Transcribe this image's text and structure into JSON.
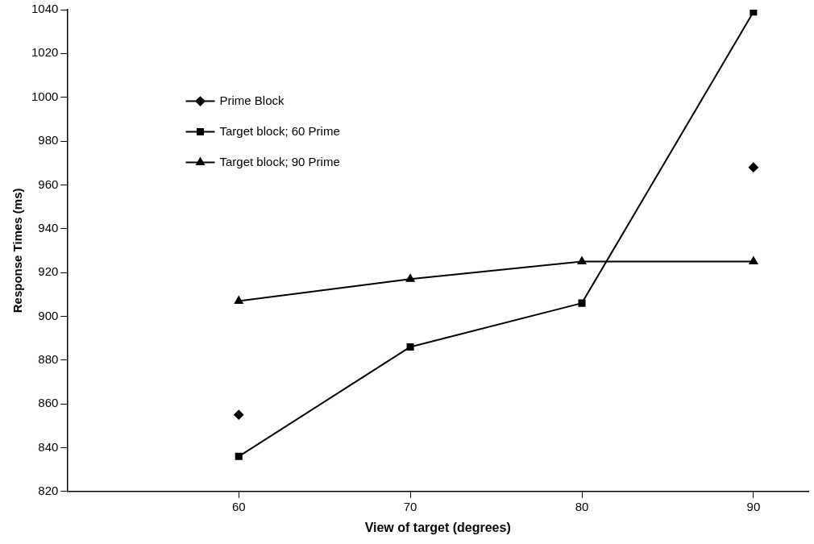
{
  "chart_data": {
    "type": "line",
    "xlabel": "View of target (degrees)",
    "ylabel": "Response Times (ms)",
    "x": [
      60,
      70,
      80,
      90
    ],
    "xlim": [
      50,
      93.2
    ],
    "xticks": [
      60,
      70,
      80,
      90
    ],
    "ylim": [
      820,
      1040
    ],
    "yticks": [
      820,
      840,
      860,
      880,
      900,
      920,
      940,
      960,
      980,
      1000,
      1020,
      1040
    ],
    "grid": false,
    "legend": "top left",
    "line_style": "solid",
    "series": [
      {
        "name": "Prime Block",
        "color": "#000000",
        "marker": "diamond",
        "values": [
          855,
          null,
          null,
          968
        ]
      },
      {
        "name": "Target block; 60 Prime",
        "color": "#000000",
        "marker": "square",
        "values": [
          836,
          886,
          906,
          1039
        ]
      },
      {
        "name": "Target block; 90 Prime",
        "color": "#000000",
        "marker": "triangle",
        "values": [
          907,
          917,
          925,
          925
        ]
      }
    ]
  }
}
